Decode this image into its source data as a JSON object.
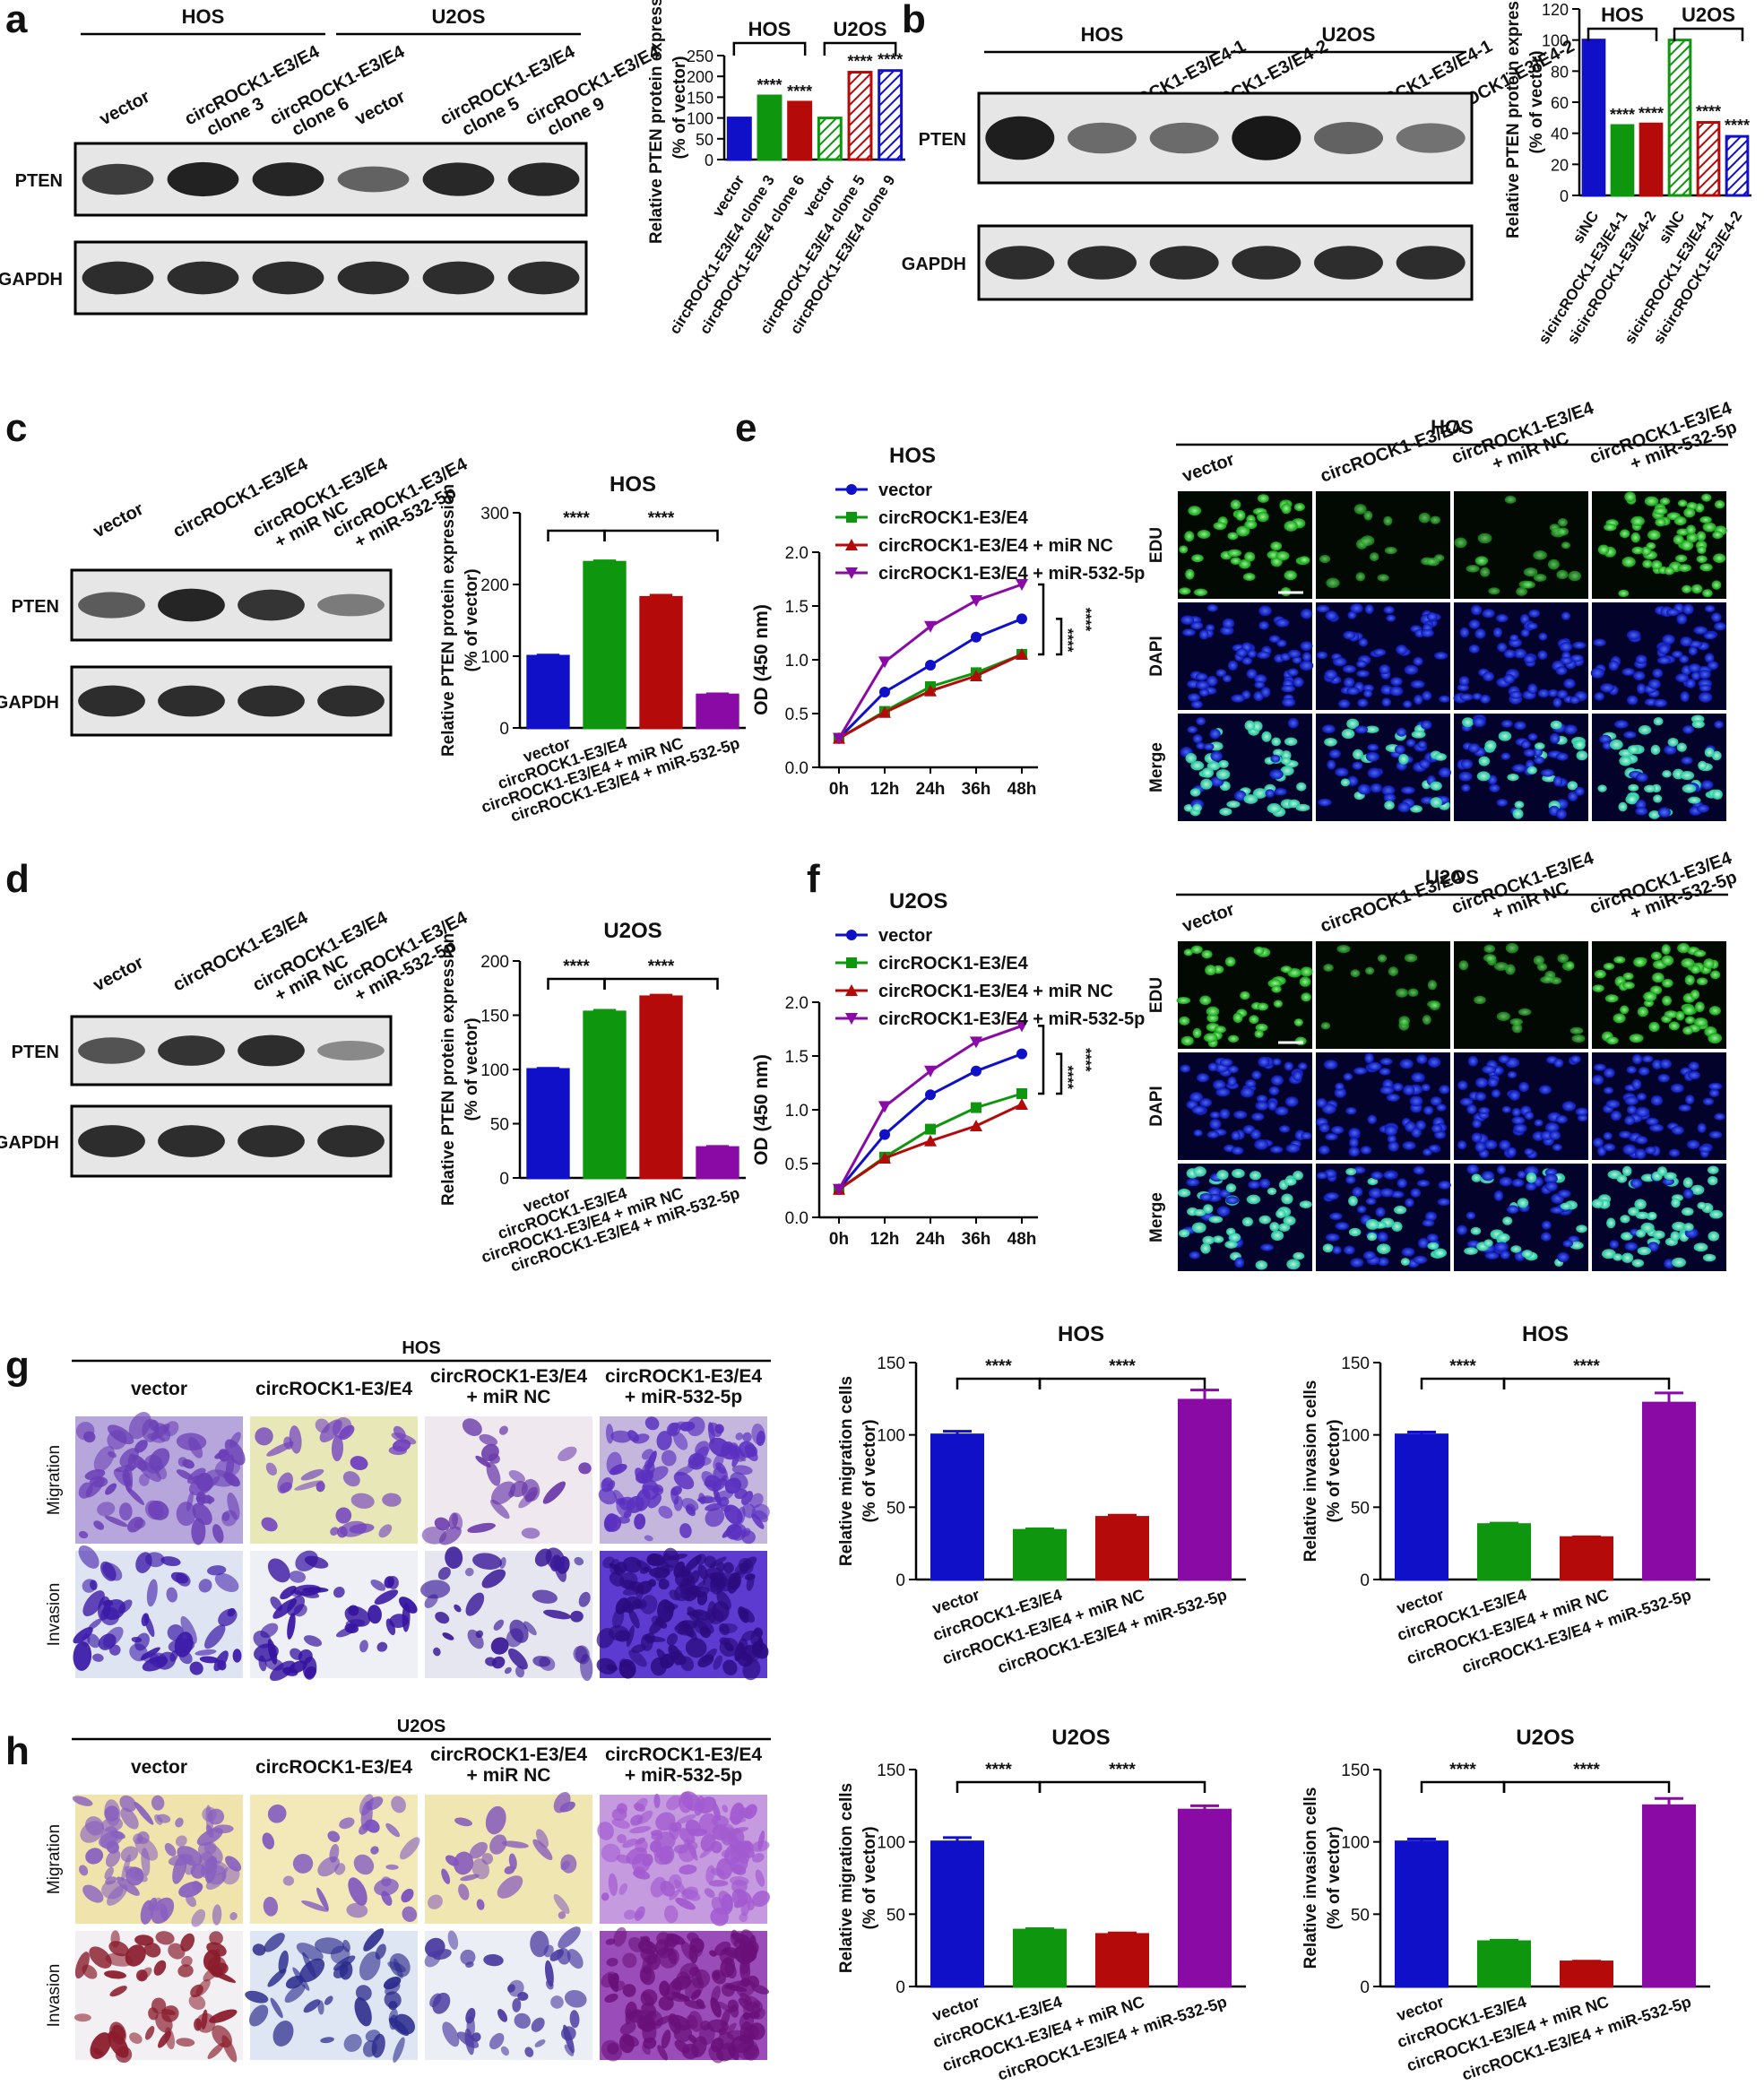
{
  "panels": {
    "a": {
      "letter": "a",
      "blot": {
        "group_labels": [
          "HOS",
          "U2OS"
        ],
        "lanes": [
          "vector",
          "circROCK1-E3/E4 clone 3",
          "circROCK1-E3/E4 clone 6",
          "vector",
          "circROCK1-E3/E4 clone 5",
          "circROCK1-E3/E4 clone 9"
        ],
        "rows": [
          "PTEN",
          "GAPDH"
        ]
      }
    },
    "b": {
      "letter": "b",
      "blot": {
        "group_labels": [
          "HOS",
          "U2OS"
        ],
        "lanes": [
          "siNC",
          "sicircROCK1-E3/E4-1",
          "sicircROCK1-E3/E4-2",
          "siNC",
          "sicircROCK1-E3/E4-1",
          "sicircROCK1-E3/E4-2"
        ],
        "rows": [
          "PTEN",
          "GAPDH"
        ]
      }
    },
    "c": {
      "letter": "c",
      "blot": {
        "lanes": [
          "vector",
          "circROCK1-E3/E4",
          "circROCK1-E3/E4 + miR NC",
          "circROCK1-E3/E4 + miR-532-5p"
        ],
        "rows": [
          "PTEN",
          "GAPDH"
        ]
      }
    },
    "d": {
      "letter": "d",
      "blot": {
        "lanes": [
          "vector",
          "circROCK1-E3/E4",
          "circROCK1-E3/E4 + miR NC",
          "circROCK1-E3/E4 + miR-532-5p"
        ],
        "rows": [
          "PTEN",
          "GAPDH"
        ]
      }
    },
    "e": {
      "letter": "e",
      "micro": {
        "title": "HOS",
        "columns": [
          "vector",
          "circROCK1-E3/E4",
          "circROCK1-E3/E4 + miR NC",
          "circROCK1-E3/E4 + miR-532-5p"
        ],
        "rows": [
          "EDU",
          "DAPI",
          "Merge"
        ]
      }
    },
    "f": {
      "letter": "f",
      "micro": {
        "title": "U2OS",
        "columns": [
          "vector",
          "circROCK1-E3/E4",
          "circROCK1-E3/E4 + miR NC",
          "circROCK1-E3/E4 + miR-532-5p"
        ],
        "rows": [
          "EDU",
          "DAPI",
          "Merge"
        ]
      }
    },
    "g": {
      "letter": "g",
      "transwell": {
        "title": "HOS",
        "columns": [
          "vector",
          "circROCK1-E3/E4",
          "circROCK1-E3/E4 + miR NC",
          "circROCK1-E3/E4 + miR-532-5p"
        ],
        "rows": [
          "Migration",
          "Invasion"
        ]
      }
    },
    "h": {
      "letter": "h",
      "transwell": {
        "title": "U2OS",
        "columns": [
          "vector",
          "circROCK1-E3/E4",
          "circROCK1-E3/E4 + miR NC",
          "circROCK1-E3/E4 + miR-532-5p"
        ],
        "rows": [
          "Migration",
          "Invasion"
        ]
      }
    }
  },
  "colors": {
    "blue": "#1010c8",
    "green": "#0f960f",
    "red": "#b40a0a",
    "purple": "#8a0aa6"
  },
  "chart_data": [
    {
      "id": "a",
      "type": "bar",
      "ylabel": "Relative PTEN protein expression (% of vector)",
      "ylim": [
        0,
        250
      ],
      "yticks": [
        0,
        50,
        100,
        150,
        200,
        250
      ],
      "categories": [
        "vector",
        "circROCK1-E3/E4 clone 3",
        "circROCK1-E3/E4 clone 6",
        "vector",
        "circROCK1-E3/E4 clone 5",
        "circROCK1-E3/E4 clone 9"
      ],
      "values": [
        100,
        153,
        138,
        100,
        210,
        214
      ],
      "sig": [
        "",
        "****",
        "****",
        "",
        "****",
        "****"
      ],
      "groups": [
        {
          "label": "HOS",
          "from": 0,
          "to": 2
        },
        {
          "label": "U2OS",
          "from": 3,
          "to": 5
        }
      ]
    },
    {
      "id": "b",
      "type": "bar",
      "ylabel": "Relative PTEN protein expression (% of vector)",
      "ylim": [
        0,
        120
      ],
      "yticks": [
        0,
        20,
        40,
        60,
        80,
        100,
        120
      ],
      "categories": [
        "siNC",
        "sicircROCK1-E3/E4-1",
        "sicircROCK1-E3/E4-2",
        "siNC",
        "sicircROCK1-E3/E4-1",
        "sicircROCK1-E3/E4-2"
      ],
      "values": [
        100,
        45,
        46,
        100,
        47,
        38
      ],
      "sig": [
        "",
        "****",
        "****",
        "",
        "****",
        "****"
      ],
      "groups": [
        {
          "label": "HOS",
          "from": 0,
          "to": 2
        },
        {
          "label": "U2OS",
          "from": 3,
          "to": 5
        }
      ]
    },
    {
      "id": "c",
      "type": "bar",
      "title": "HOS",
      "ylabel": "Relative PTEN protein expression (% of vector)",
      "ylim": [
        0,
        300
      ],
      "yticks": [
        0,
        100,
        200,
        300
      ],
      "categories": [
        "vector",
        "circROCK1-E3/E4",
        "circROCK1-E3/E4 + miR NC",
        "circROCK1-E3/E4 + miR-532-5p"
      ],
      "values": [
        100,
        231,
        182,
        46
      ],
      "errors": [
        1.5,
        2,
        3,
        1.5
      ],
      "brackets": [
        {
          "from": 0,
          "to": 1,
          "label": "****"
        },
        {
          "from": 1,
          "to": 3,
          "label": "****"
        }
      ]
    },
    {
      "id": "d",
      "type": "bar",
      "title": "U2OS",
      "ylabel": "Relative PTEN protein expression (% of vector)",
      "ylim": [
        0,
        200
      ],
      "yticks": [
        0,
        50,
        100,
        150,
        200
      ],
      "categories": [
        "vector",
        "circROCK1-E3/E4",
        "circROCK1-E3/E4 + miR NC",
        "circROCK1-E3/E4 + miR-532-5p"
      ],
      "values": [
        100,
        153,
        167,
        28
      ],
      "errors": [
        1,
        1.5,
        1.5,
        1
      ],
      "brackets": [
        {
          "from": 0,
          "to": 1,
          "label": "****"
        },
        {
          "from": 1,
          "to": 3,
          "label": "****"
        }
      ]
    },
    {
      "id": "e",
      "type": "line",
      "title": "HOS",
      "ylabel": "OD (450 nm)",
      "x": [
        "0h",
        "12h",
        "24h",
        "36h",
        "48h"
      ],
      "ylim": [
        0,
        2.0
      ],
      "yticks": [
        0.0,
        0.5,
        1.0,
        1.5,
        2.0
      ],
      "series": [
        {
          "name": "vector",
          "values": [
            0.27,
            0.7,
            0.95,
            1.21,
            1.38
          ]
        },
        {
          "name": "circROCK1-E3/E4",
          "values": [
            0.27,
            0.52,
            0.75,
            0.88,
            1.05
          ]
        },
        {
          "name": "circROCK1-E3/E4 + miR NC",
          "values": [
            0.27,
            0.51,
            0.71,
            0.85,
            1.05
          ]
        },
        {
          "name": "circROCK1-E3/E4 + miR-532-5p",
          "values": [
            0.27,
            0.98,
            1.31,
            1.55,
            1.7
          ]
        }
      ],
      "sig_label": "****"
    },
    {
      "id": "f",
      "type": "line",
      "title": "U2OS",
      "ylabel": "OD (450 nm)",
      "x": [
        "0h",
        "12h",
        "24h",
        "36h",
        "48h"
      ],
      "ylim": [
        0,
        2.0
      ],
      "yticks": [
        0.0,
        0.5,
        1.0,
        1.5,
        2.0
      ],
      "series": [
        {
          "name": "vector",
          "values": [
            0.26,
            0.77,
            1.14,
            1.36,
            1.52
          ]
        },
        {
          "name": "circROCK1-E3/E4",
          "values": [
            0.26,
            0.56,
            0.82,
            1.02,
            1.15
          ]
        },
        {
          "name": "circROCK1-E3/E4 + miR NC",
          "values": [
            0.26,
            0.55,
            0.71,
            0.85,
            1.05
          ]
        },
        {
          "name": "circROCK1-E3/E4 + miR-532-5p",
          "values": [
            0.26,
            1.03,
            1.36,
            1.63,
            1.78
          ]
        }
      ],
      "sig_label": "****"
    },
    {
      "id": "g1",
      "type": "bar",
      "title": "HOS",
      "ylabel": "Relative migration cells (% of vector)",
      "ylim": [
        0,
        150
      ],
      "yticks": [
        0,
        50,
        100,
        150
      ],
      "categories": [
        "vector",
        "circROCK1-E3/E4",
        "circROCK1-E3/E4 + miR NC",
        "circROCK1-E3/E4 + miR-532-5p"
      ],
      "values": [
        100,
        34,
        43,
        124
      ],
      "errors": [
        2.5,
        1,
        1.5,
        7
      ],
      "brackets": [
        {
          "from": 0,
          "to": 1,
          "label": "****"
        },
        {
          "from": 1,
          "to": 3,
          "label": "****"
        }
      ]
    },
    {
      "id": "g2",
      "type": "bar",
      "title": "HOS",
      "ylabel": "Relative invasion cells (% of vector)",
      "ylim": [
        0,
        150
      ],
      "yticks": [
        0,
        50,
        100,
        150
      ],
      "categories": [
        "vector",
        "circROCK1-E3/E4",
        "circROCK1-E3/E4 + miR NC",
        "circROCK1-E3/E4 + miR-532-5p"
      ],
      "values": [
        100,
        38,
        29,
        122
      ],
      "errors": [
        2,
        1,
        0.5,
        7
      ],
      "brackets": [
        {
          "from": 0,
          "to": 1,
          "label": "****"
        },
        {
          "from": 1,
          "to": 3,
          "label": "****"
        }
      ]
    },
    {
      "id": "h1",
      "type": "bar",
      "title": "U2OS",
      "ylabel": "Relative migration cells (% of vector)",
      "ylim": [
        0,
        150
      ],
      "yticks": [
        0,
        50,
        100,
        150
      ],
      "categories": [
        "vector",
        "circROCK1-E3/E4",
        "circROCK1-E3/E4 + miR NC",
        "circROCK1-E3/E4 + miR-532-5p"
      ],
      "values": [
        100,
        39,
        36,
        122
      ],
      "errors": [
        3,
        1,
        1,
        3
      ],
      "brackets": [
        {
          "from": 0,
          "to": 1,
          "label": "****"
        },
        {
          "from": 1,
          "to": 3,
          "label": "****"
        }
      ]
    },
    {
      "id": "h2",
      "type": "bar",
      "title": "U2OS",
      "ylabel": "Relative invasion cells (% of vector)",
      "ylim": [
        0,
        150
      ],
      "yticks": [
        0,
        50,
        100,
        150
      ],
      "categories": [
        "vector",
        "circROCK1-E3/E4",
        "circROCK1-E3/E4 + miR NC",
        "circROCK1-E3/E4 + miR-532-5p"
      ],
      "values": [
        100,
        31,
        17,
        125
      ],
      "errors": [
        2,
        1,
        0.5,
        5
      ],
      "brackets": [
        {
          "from": 0,
          "to": 1,
          "label": "****"
        },
        {
          "from": 1,
          "to": 3,
          "label": "****"
        }
      ]
    }
  ]
}
